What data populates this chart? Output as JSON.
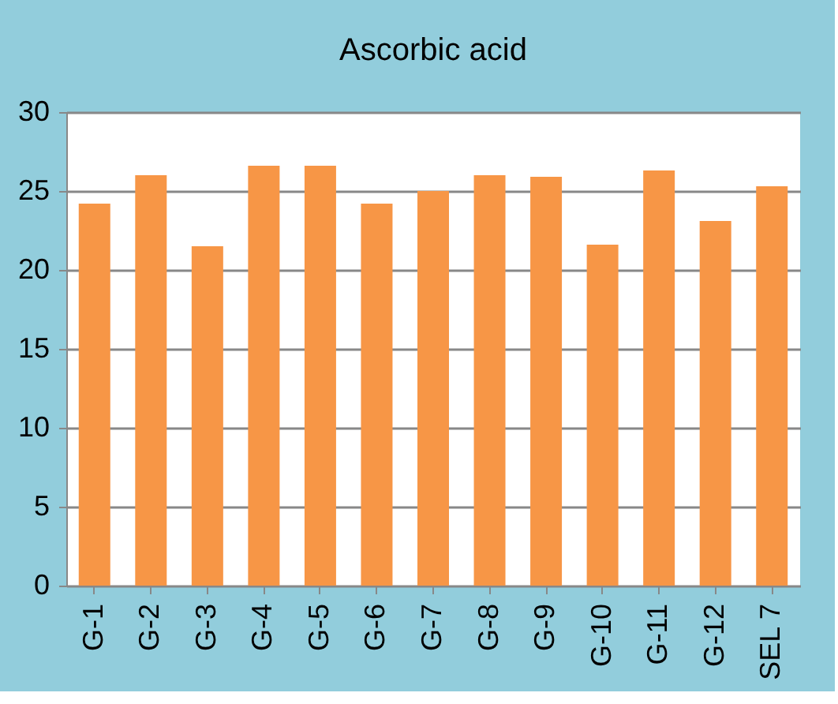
{
  "chart_data": {
    "type": "bar",
    "title": "Ascorbic acid",
    "categories": [
      "G-1",
      "G-2",
      "G-3",
      "G-4",
      "G-5",
      "G-6",
      "G-7",
      "G-8",
      "G-9",
      "G-10",
      "G-11",
      "G-12",
      "SEL 7"
    ],
    "values": [
      24.2,
      26.0,
      21.5,
      26.6,
      26.6,
      24.2,
      25.0,
      26.0,
      25.9,
      21.6,
      26.3,
      23.1,
      25.3
    ],
    "color": "#f79646",
    "ylim": [
      0,
      30
    ],
    "yticks": [
      0,
      5,
      10,
      15,
      20,
      25,
      30
    ],
    "grid": "y"
  }
}
